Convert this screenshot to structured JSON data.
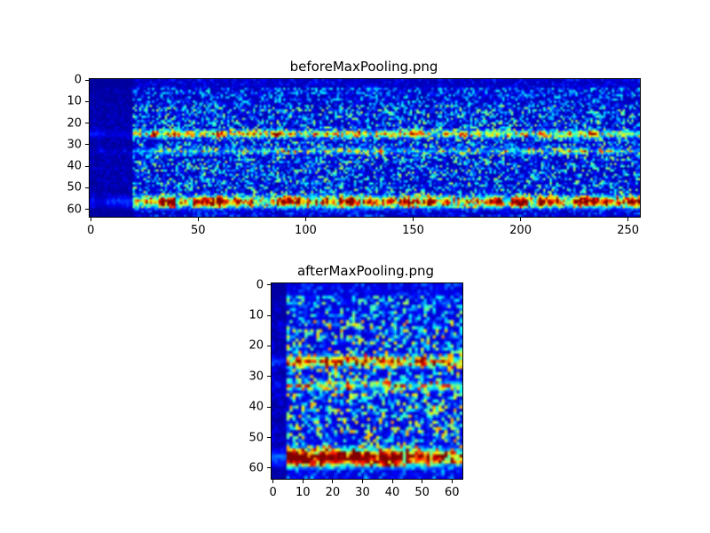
{
  "figure": {
    "background": "#ffffff",
    "axis_color": "#000000"
  },
  "chart_data": [
    {
      "type": "heatmap",
      "title": "beforeMaxPooling.png",
      "colormap": "jet",
      "rows": 64,
      "cols": 256,
      "xlim": [
        -0.5,
        255.5
      ],
      "ylim": [
        63.5,
        -0.5
      ],
      "x_ticks": [
        0,
        50,
        100,
        150,
        200,
        250
      ],
      "y_ticks": [
        0,
        10,
        20,
        30,
        40,
        50,
        60
      ],
      "xlabel": "",
      "ylabel": "",
      "grid": false,
      "legend": false,
      "seed": 101,
      "features": {
        "background_level": 0.05,
        "noise_level": 0.22,
        "very_quiet_top_rows": 4,
        "quiet_top_rows": 12,
        "quiet_bottom_start": 60,
        "dark_left_cols": 20,
        "bands": [
          {
            "row": 25,
            "width": 1.1,
            "intensity": 0.72,
            "sparsity": 0.25
          },
          {
            "row": 33,
            "width": 0.9,
            "intensity": 0.5,
            "sparsity": 0.45
          },
          {
            "row": 56.5,
            "width": 1.7,
            "intensity": 1.0,
            "sparsity": 0.18
          }
        ]
      }
    },
    {
      "type": "heatmap",
      "title": "afterMaxPooling.png",
      "colormap": "jet",
      "rows": 64,
      "cols": 64,
      "xlim": [
        -0.5,
        63.5
      ],
      "ylim": [
        63.5,
        -0.5
      ],
      "x_ticks": [
        0,
        10,
        20,
        30,
        40,
        50,
        60
      ],
      "y_ticks": [
        0,
        10,
        20,
        30,
        40,
        50,
        60
      ],
      "xlabel": "",
      "ylabel": "",
      "grid": false,
      "legend": false,
      "seed": 202,
      "features": {
        "background_level": 0.08,
        "noise_level": 0.28,
        "very_quiet_top_rows": 4,
        "quiet_top_rows": 12,
        "quiet_bottom_start": 60,
        "dark_left_cols": 5,
        "bands": [
          {
            "row": 25,
            "width": 1.1,
            "intensity": 0.8,
            "sparsity": 0.15
          },
          {
            "row": 33,
            "width": 0.9,
            "intensity": 0.55,
            "sparsity": 0.3
          },
          {
            "row": 56.5,
            "width": 1.7,
            "intensity": 1.05,
            "sparsity": 0.1
          }
        ]
      }
    }
  ]
}
